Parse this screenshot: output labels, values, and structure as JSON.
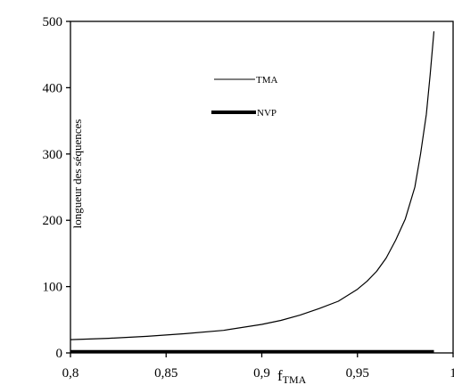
{
  "chart_data": {
    "type": "line",
    "title": "",
    "xlabel": "f",
    "xlabel_sub": "TMA",
    "ylabel": "longueur des séquences",
    "xlim": [
      0.8,
      1.0
    ],
    "ylim": [
      0,
      500
    ],
    "xticks": [
      0.8,
      0.85,
      0.9,
      0.95,
      1.0
    ],
    "xtick_labels": [
      "0,8",
      "0,85",
      "0,9",
      "0,95",
      "1"
    ],
    "yticks": [
      0,
      100,
      200,
      300,
      400,
      500
    ],
    "ytick_labels": [
      "0",
      "100",
      "200",
      "300",
      "400",
      "500"
    ],
    "grid": false,
    "legend_placement": "top-center",
    "series": [
      {
        "name": "TMA",
        "style": "thin",
        "color": "#000000",
        "x": [
          0.8,
          0.82,
          0.84,
          0.86,
          0.88,
          0.9,
          0.91,
          0.92,
          0.93,
          0.94,
          0.95,
          0.955,
          0.96,
          0.965,
          0.97,
          0.975,
          0.98,
          0.983,
          0.986,
          0.988,
          0.99
        ],
        "y": [
          20,
          22,
          25,
          29,
          34,
          43,
          49,
          57,
          67,
          78,
          96,
          108,
          123,
          143,
          170,
          202,
          250,
          300,
          360,
          420,
          485
        ]
      },
      {
        "name": "NVP",
        "style": "thick",
        "color": "#000000",
        "x": [
          0.8,
          0.85,
          0.9,
          0.95,
          0.99
        ],
        "y": [
          2,
          2,
          2,
          2,
          2
        ]
      }
    ]
  }
}
